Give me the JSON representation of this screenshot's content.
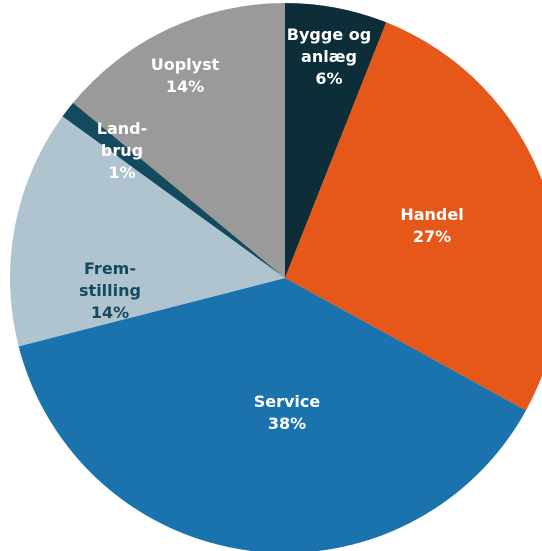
{
  "chart_data": {
    "type": "pie",
    "start_angle_deg": 0,
    "direction": "clockwise",
    "slices": [
      {
        "label_lines": [
          "Bygge og",
          "anlæg"
        ],
        "pct_label": "6%",
        "value": 6,
        "color": "#0d2e38",
        "label_color": "#ffffff"
      },
      {
        "label_lines": [
          "Handel"
        ],
        "pct_label": "27%",
        "value": 27,
        "color": "#e5581a",
        "label_color": "#ffffff"
      },
      {
        "label_lines": [
          "Service"
        ],
        "pct_label": "38%",
        "value": 38,
        "color": "#1a73ad",
        "label_color": "#ffffff"
      },
      {
        "label_lines": [
          "Frem-",
          "stilling"
        ],
        "pct_label": "14%",
        "value": 14,
        "color": "#b0c4cf",
        "label_color": "#134a5e"
      },
      {
        "label_lines": [
          "Land-",
          "brug"
        ],
        "pct_label": "1%",
        "value": 1,
        "color": "#134a5e",
        "label_color": "#ffffff"
      },
      {
        "label_lines": [
          "Uoplyst"
        ],
        "pct_label": "14%",
        "value": 14,
        "color": "#9a9a9a",
        "label_color": "#ffffff"
      }
    ]
  }
}
